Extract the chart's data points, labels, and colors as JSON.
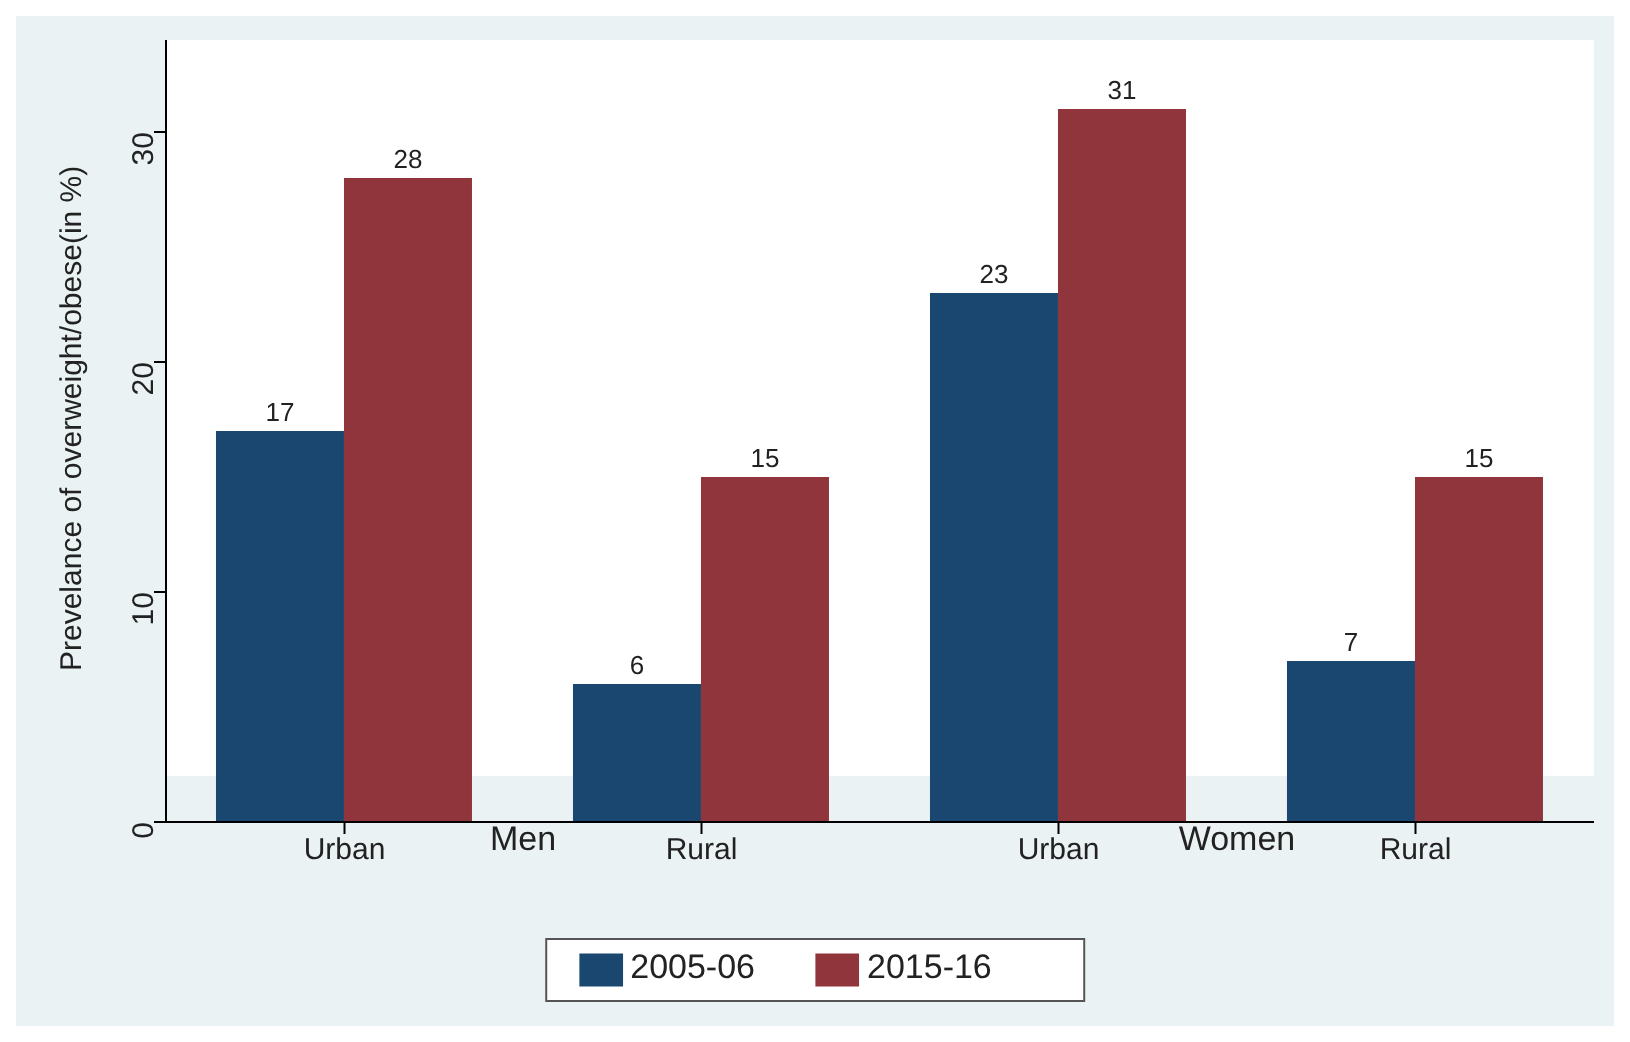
{
  "chart_data": {
    "type": "bar",
    "categories": [
      "Urban",
      "Rural",
      "Urban",
      "Rural"
    ],
    "ylabel": "Prevelance of overweight/obese(in %)",
    "ylim": [
      0,
      34
    ],
    "yticks": [
      0,
      10,
      20,
      30
    ],
    "grid": false,
    "legend": "bottom",
    "data_labels": true,
    "series": [
      {
        "name": "2005-06",
        "color": "#1a476f",
        "values": [
          17,
          6,
          23,
          7
        ]
      },
      {
        "name": "2015-16",
        "color": "#90353b",
        "values": [
          28,
          15,
          31,
          15
        ]
      }
    ],
    "annotations": [
      "Men",
      "Women"
    ]
  }
}
